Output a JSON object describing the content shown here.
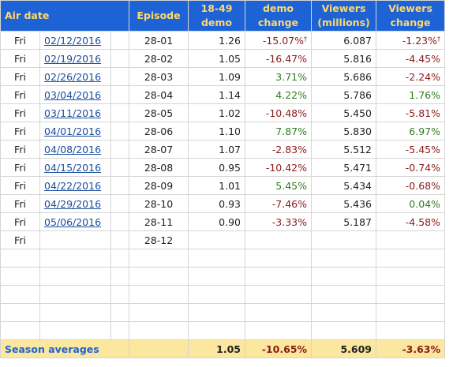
{
  "headers": {
    "air_date": "Air date",
    "episode": "Episode",
    "demo_l1": "18-49",
    "demo_l2": "demo",
    "demo_change_l1": "demo",
    "demo_change_l2": "change",
    "viewers_l1": "Viewers",
    "viewers_l2": "(millions)",
    "viewers_change_l1": "Viewers",
    "viewers_change_l2": "change"
  },
  "rows": [
    {
      "day": "Fri",
      "date": "02/12/2016",
      "episode": "28-01",
      "demo": "1.26",
      "demo_change": "-15.07%",
      "demo_change_mark": "†",
      "viewers": "6.087",
      "viewers_change": "-1.23%",
      "viewers_change_mark": "†"
    },
    {
      "day": "Fri",
      "date": "02/19/2016",
      "episode": "28-02",
      "demo": "1.05",
      "demo_change": "-16.47%",
      "demo_change_mark": "",
      "viewers": "5.816",
      "viewers_change": "-4.45%",
      "viewers_change_mark": ""
    },
    {
      "day": "Fri",
      "date": "02/26/2016",
      "episode": "28-03",
      "demo": "1.09",
      "demo_change": "3.71%",
      "demo_change_mark": "",
      "viewers": "5.686",
      "viewers_change": "-2.24%",
      "viewers_change_mark": ""
    },
    {
      "day": "Fri",
      "date": "03/04/2016",
      "episode": "28-04",
      "demo": "1.14",
      "demo_change": "4.22%",
      "demo_change_mark": "",
      "viewers": "5.786",
      "viewers_change": "1.76%",
      "viewers_change_mark": ""
    },
    {
      "day": "Fri",
      "date": "03/11/2016",
      "episode": "28-05",
      "demo": "1.02",
      "demo_change": "-10.48%",
      "demo_change_mark": "",
      "viewers": "5.450",
      "viewers_change": "-5.81%",
      "viewers_change_mark": ""
    },
    {
      "day": "Fri",
      "date": "04/01/2016",
      "episode": "28-06",
      "demo": "1.10",
      "demo_change": "7.87%",
      "demo_change_mark": "",
      "viewers": "5.830",
      "viewers_change": "6.97%",
      "viewers_change_mark": ""
    },
    {
      "day": "Fri",
      "date": "04/08/2016",
      "episode": "28-07",
      "demo": "1.07",
      "demo_change": "-2.83%",
      "demo_change_mark": "",
      "viewers": "5.512",
      "viewers_change": "-5.45%",
      "viewers_change_mark": ""
    },
    {
      "day": "Fri",
      "date": "04/15/2016",
      "episode": "28-08",
      "demo": "0.95",
      "demo_change": "-10.42%",
      "demo_change_mark": "",
      "viewers": "5.471",
      "viewers_change": "-0.74%",
      "viewers_change_mark": ""
    },
    {
      "day": "Fri",
      "date": "04/22/2016",
      "episode": "28-09",
      "demo": "1.01",
      "demo_change": "5.45%",
      "demo_change_mark": "",
      "viewers": "5.434",
      "viewers_change": "-0.68%",
      "viewers_change_mark": ""
    },
    {
      "day": "Fri",
      "date": "04/29/2016",
      "episode": "28-10",
      "demo": "0.93",
      "demo_change": "-7.46%",
      "demo_change_mark": "",
      "viewers": "5.436",
      "viewers_change": "0.04%",
      "viewers_change_mark": ""
    },
    {
      "day": "Fri",
      "date": "05/06/2016",
      "episode": "28-11",
      "demo": "0.90",
      "demo_change": "-3.33%",
      "demo_change_mark": "",
      "viewers": "5.187",
      "viewers_change": "-4.58%",
      "viewers_change_mark": ""
    },
    {
      "day": "Fri",
      "date": "",
      "episode": "28-12",
      "demo": "",
      "demo_change": "",
      "demo_change_mark": "",
      "viewers": "",
      "viewers_change": "",
      "viewers_change_mark": ""
    },
    {
      "day": "",
      "date": "",
      "episode": "",
      "demo": "",
      "demo_change": "",
      "demo_change_mark": "",
      "viewers": "",
      "viewers_change": "",
      "viewers_change_mark": ""
    },
    {
      "day": "",
      "date": "",
      "episode": "",
      "demo": "",
      "demo_change": "",
      "demo_change_mark": "",
      "viewers": "",
      "viewers_change": "",
      "viewers_change_mark": ""
    },
    {
      "day": "",
      "date": "",
      "episode": "",
      "demo": "",
      "demo_change": "",
      "demo_change_mark": "",
      "viewers": "",
      "viewers_change": "",
      "viewers_change_mark": ""
    },
    {
      "day": "",
      "date": "",
      "episode": "",
      "demo": "",
      "demo_change": "",
      "demo_change_mark": "",
      "viewers": "",
      "viewers_change": "",
      "viewers_change_mark": ""
    },
    {
      "day": "",
      "date": "",
      "episode": "",
      "demo": "",
      "demo_change": "",
      "demo_change_mark": "",
      "viewers": "",
      "viewers_change": "",
      "viewers_change_mark": ""
    }
  ],
  "averages": {
    "label": "Season averages",
    "demo": "1.05",
    "demo_change": "-10.65%",
    "viewers": "5.609",
    "viewers_change": "-3.63%"
  },
  "colors": {
    "header_bg": "#1e63d6",
    "header_text": "#ffd86a",
    "positive": "#2f7d1e",
    "negative": "#8b1a1a",
    "footer_bg": "#fbe79d"
  }
}
